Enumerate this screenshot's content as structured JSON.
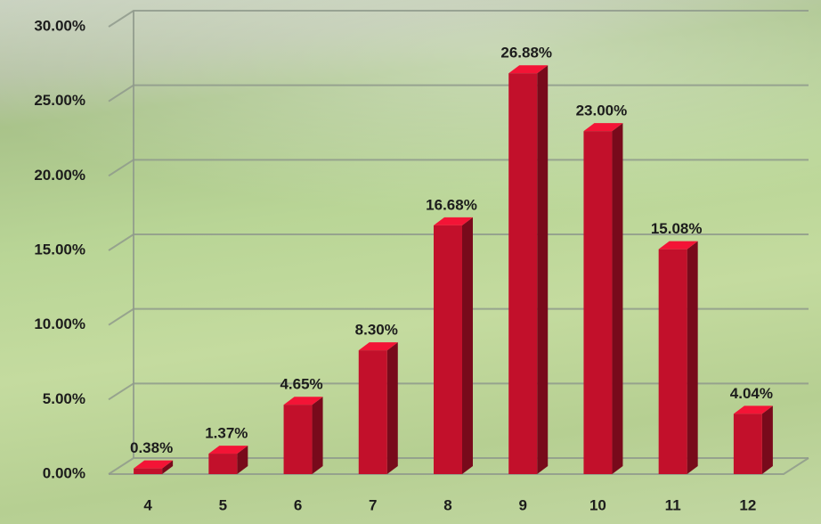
{
  "chart_data": {
    "type": "bar3d",
    "categories": [
      "4",
      "5",
      "6",
      "7",
      "8",
      "9",
      "10",
      "11",
      "12"
    ],
    "values": [
      0.38,
      1.37,
      4.65,
      8.3,
      16.68,
      26.88,
      23.0,
      15.08,
      4.04
    ],
    "value_labels": [
      "0.38%",
      "1.37%",
      "4.65%",
      "8.30%",
      "16.68%",
      "26.88%",
      "23.00%",
      "15.08%",
      "4.04%"
    ],
    "color": "#c2102b",
    "ylim": [
      0,
      30
    ],
    "yticks": [
      {
        "value": 0,
        "label": "0.00%"
      },
      {
        "value": 5,
        "label": "5.00%"
      },
      {
        "value": 10,
        "label": "10.00%"
      },
      {
        "value": 15,
        "label": "15.00%"
      },
      {
        "value": 20,
        "label": "20.00%"
      },
      {
        "value": 25,
        "label": "25.00%"
      },
      {
        "value": 30,
        "label": "30.00%"
      }
    ],
    "grid": true
  }
}
